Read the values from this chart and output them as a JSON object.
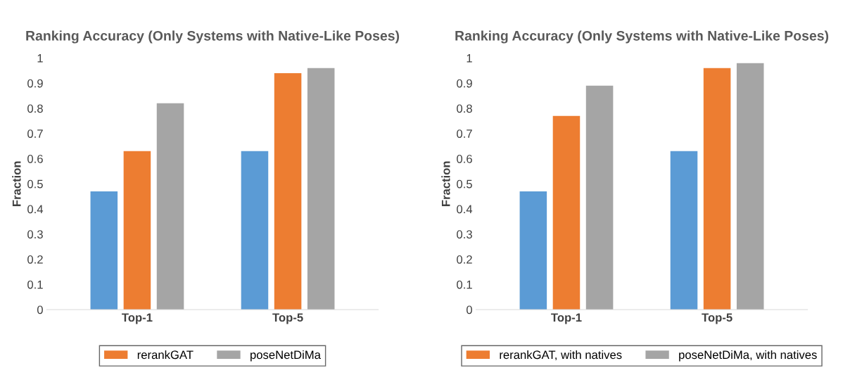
{
  "chart_data": [
    {
      "type": "bar",
      "title": "Ranking Accuracy (Only Systems with Native-Like Poses)",
      "ylabel": "Fraction",
      "categories": [
        "Top-1",
        "Top-5"
      ],
      "series": [
        {
          "color": "#5b9bd5",
          "values": [
            0.47,
            0.63
          ]
        },
        {
          "name": "rerankGAT",
          "color": "#ed7d31",
          "values": [
            0.63,
            0.94
          ]
        },
        {
          "name": "poseNetDiMa",
          "color": "#a5a5a5",
          "values": [
            0.82,
            0.96
          ]
        }
      ],
      "ylim": [
        0,
        1
      ],
      "yticks": [
        0,
        0.1,
        0.2,
        0.3,
        0.4,
        0.5,
        0.6,
        0.7,
        0.8,
        0.9,
        1
      ],
      "grid": false,
      "legend": "bottom"
    },
    {
      "type": "bar",
      "title": "Ranking Accuracy (Only Systems with Native-Like Poses)",
      "ylabel": "Fraction",
      "categories": [
        "Top-1",
        "Top-5"
      ],
      "series": [
        {
          "color": "#5b9bd5",
          "values": [
            0.47,
            0.63
          ]
        },
        {
          "name": "rerankGAT, with natives",
          "color": "#ed7d31",
          "values": [
            0.77,
            0.96
          ]
        },
        {
          "name": "poseNetDiMa, with natives",
          "color": "#a5a5a5",
          "values": [
            0.89,
            0.98
          ]
        }
      ],
      "ylim": [
        0,
        1
      ],
      "yticks": [
        0,
        0.1,
        0.2,
        0.3,
        0.4,
        0.5,
        0.6,
        0.7,
        0.8,
        0.9,
        1
      ],
      "grid": false,
      "legend": "bottom"
    }
  ]
}
